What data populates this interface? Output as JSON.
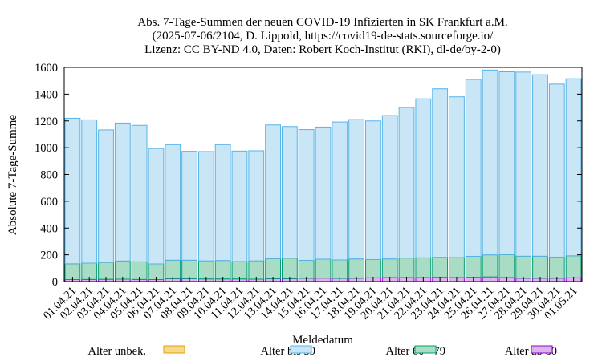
{
  "chart_data": {
    "type": "bar",
    "stacked": true,
    "title": [
      "Abs. 7-Tage-Summen der neuen COVID-19 Infizierten in SK Frankfurt a.M.",
      "(2025-07-06/2104, D. Lippold, https://covid19-de-stats.sourceforge.io/",
      "Lizenz: CC BY-ND 4.0, Daten: Robert Koch-Institut (RKI), dl-de/by-2-0)"
    ],
    "xlabel": "Meldedatum",
    "ylabel": "Absolute 7-Tage-Summe",
    "ylim": [
      0,
      1600
    ],
    "yticks": [
      0,
      200,
      400,
      600,
      800,
      1000,
      1200,
      1400,
      1600
    ],
    "categories": [
      "01.04.21",
      "02.04.21",
      "03.04.21",
      "04.04.21",
      "05.04.21",
      "06.04.21",
      "07.04.21",
      "08.04.21",
      "09.04.21",
      "10.04.21",
      "11.04.21",
      "12.04.21",
      "13.04.21",
      "14.04.21",
      "15.04.21",
      "16.04.21",
      "17.04.21",
      "18.04.21",
      "19.04.21",
      "20.04.21",
      "21.04.21",
      "22.04.21",
      "23.04.21",
      "24.04.21",
      "25.04.21",
      "26.04.21",
      "27.04.21",
      "28.04.21",
      "29.04.21",
      "30.04.21",
      "01.05.21"
    ],
    "series": [
      {
        "name": "Alter unbek.",
        "color": "#f5d98b",
        "edge": "#e69f00",
        "values": [
          0,
          0,
          0,
          0,
          0,
          0,
          0,
          0,
          0,
          0,
          0,
          0,
          0,
          0,
          0,
          0,
          0,
          0,
          0,
          0,
          0,
          0,
          0,
          0,
          0,
          0,
          0,
          0,
          0,
          0,
          0
        ]
      },
      {
        "name": "Alter ab 80",
        "color": "#dcb4ec",
        "edge": "#9400d3",
        "values": [
          15,
          16,
          17,
          18,
          16,
          15,
          22,
          22,
          20,
          20,
          20,
          18,
          22,
          22,
          24,
          26,
          24,
          25,
          28,
          30,
          30,
          30,
          32,
          30,
          32,
          35,
          30,
          25,
          25,
          25,
          28
        ]
      },
      {
        "name": "Alter 60 - 79",
        "color": "#a8dcc4",
        "edge": "#009e73",
        "values": [
          118,
          122,
          126,
          136,
          132,
          117,
          138,
          138,
          135,
          138,
          130,
          137,
          150,
          153,
          135,
          142,
          138,
          145,
          137,
          140,
          146,
          148,
          150,
          150,
          157,
          165,
          172,
          165,
          165,
          158,
          165
        ]
      },
      {
        "name": "Alter bis 59",
        "color": "#c9e6f7",
        "edge": "#56b4e9",
        "values": [
          1087,
          1070,
          990,
          1030,
          1019,
          862,
          863,
          813,
          816,
          865,
          825,
          822,
          998,
          983,
          976,
          986,
          1030,
          1040,
          1035,
          1070,
          1124,
          1187,
          1258,
          1200,
          1321,
          1380,
          1365,
          1375,
          1355,
          1292,
          1322
        ]
      }
    ],
    "legend": {
      "placement": "bottom",
      "entries": [
        {
          "name": "Alter unbek.",
          "series": 0
        },
        {
          "name": "Alter bis 59",
          "series": 3
        },
        {
          "name": "Alter 60 - 79",
          "series": 2
        },
        {
          "name": "Alter ab 80",
          "series": 1
        }
      ]
    },
    "grid": false
  }
}
